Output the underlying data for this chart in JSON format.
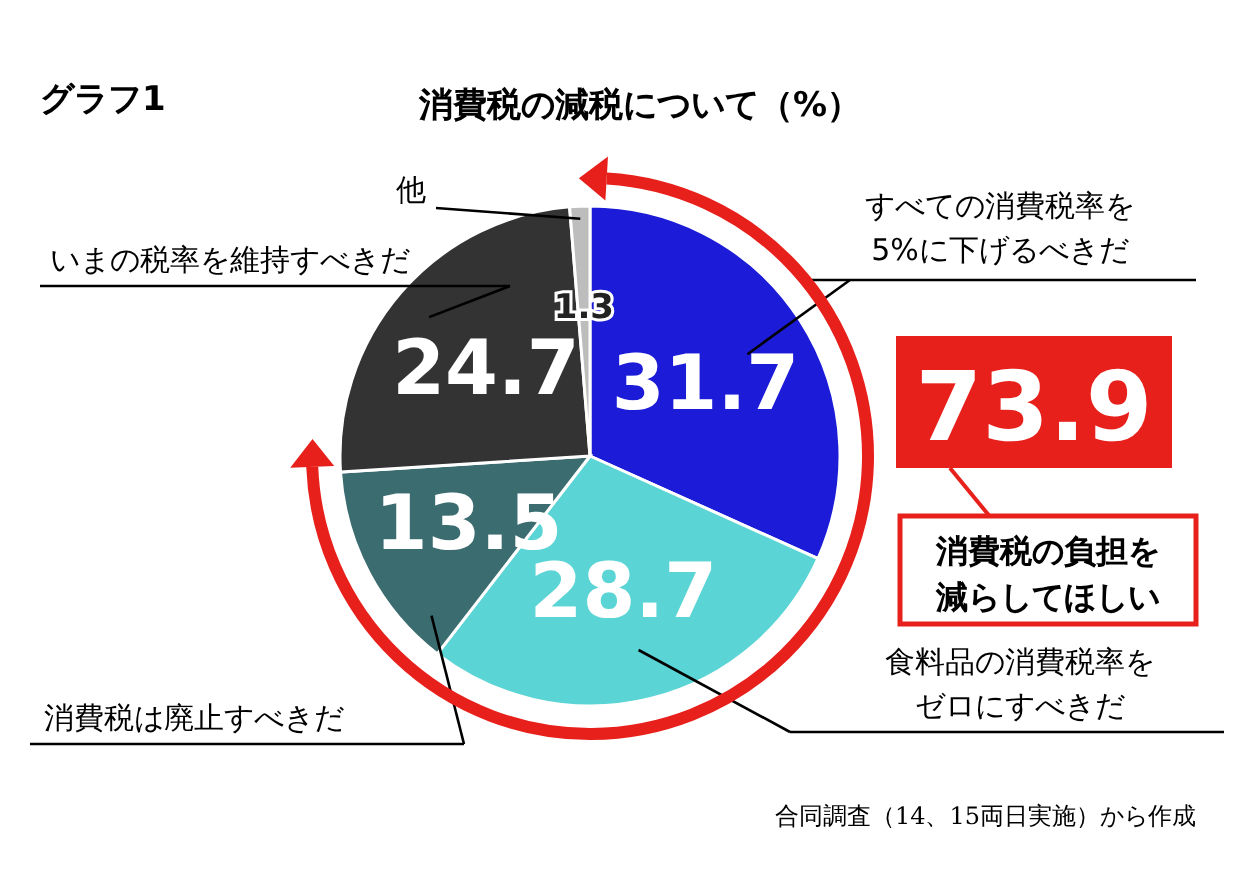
{
  "chart_data": {
    "type": "pie",
    "subtitle": "グラフ1",
    "title": "消費税の減税について（%）",
    "categories": [
      "すべての消費税率を5%に下げるべきだ",
      "食料品の消費税率をゼロにすべきだ",
      "消費税は廃止すべきだ",
      "いまの税率を維持すべきだ",
      "他"
    ],
    "values": [
      31.7,
      28.7,
      13.5,
      24.7,
      1.3
    ],
    "colors": [
      "#1b1bd8",
      "#5ad4d4",
      "#3b6c70",
      "#333333",
      "#bdbdbd"
    ],
    "data_labels": true,
    "annotations": [
      "73.9",
      "消費税の負担を減らしてほしい",
      "合同調査（14、15両日実施）から作成"
    ]
  }
}
